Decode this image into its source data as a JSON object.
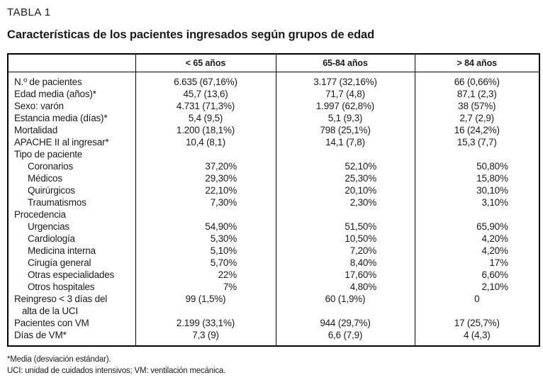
{
  "header": {
    "label": "TABLA 1",
    "title": "Características de los pacientes ingresados según grupos de edad"
  },
  "table": {
    "columns": [
      "",
      "< 65 años",
      "65-84 años",
      "> 84 años"
    ],
    "rows": [
      {
        "label": "N.º de pacientes",
        "indent": 0,
        "pct": false,
        "values": [
          "6.635 (67,16%)",
          "3.177 (32,16%)",
          "66 (0,66%)"
        ]
      },
      {
        "label": "Edad media (años)*",
        "indent": 0,
        "pct": false,
        "values": [
          "45,7 (13,6)",
          "71,7 (4,8)",
          "87,1 (2,3)"
        ]
      },
      {
        "label": "Sexo: varón",
        "indent": 0,
        "pct": false,
        "values": [
          "4.731 (71,3%)",
          "1.997 (62,8%)",
          "38 (57%)"
        ]
      },
      {
        "label": "Estancia media (días)*",
        "indent": 0,
        "pct": false,
        "values": [
          "5,4 (9,5)",
          "5,1 (9,3)",
          "2,7 (2,9)"
        ]
      },
      {
        "label": "Mortalidad",
        "indent": 0,
        "pct": false,
        "values": [
          "1.200 (18,1%)",
          "798 (25,1%)",
          "16 (24,2%)"
        ]
      },
      {
        "label": "APACHE II al ingresar*",
        "indent": 0,
        "pct": false,
        "values": [
          "10,4 (8,1)",
          "14,1 (7,8)",
          "15,3 (7,7)"
        ]
      },
      {
        "label": "Tipo de paciente",
        "indent": 0,
        "pct": false,
        "values": [
          "",
          "",
          ""
        ]
      },
      {
        "label": "Coronarios",
        "indent": 1,
        "pct": true,
        "values": [
          "37,20%",
          "52,10%",
          "50,80%"
        ]
      },
      {
        "label": "Médicos",
        "indent": 1,
        "pct": true,
        "values": [
          "29,30%",
          "25,30%",
          "15,80%"
        ]
      },
      {
        "label": "Quirúrgicos",
        "indent": 1,
        "pct": true,
        "values": [
          "22,10%",
          "20,10%",
          "30,10%"
        ]
      },
      {
        "label": "Traumatismos",
        "indent": 1,
        "pct": true,
        "values": [
          "7,30%",
          "2,30%",
          "3,10%"
        ]
      },
      {
        "label": "Procedencia",
        "indent": 0,
        "pct": false,
        "values": [
          "",
          "",
          ""
        ]
      },
      {
        "label": "Urgencias",
        "indent": 1,
        "pct": true,
        "values": [
          "54,90%",
          "51,50%",
          "65,90%"
        ]
      },
      {
        "label": "Cardiología",
        "indent": 1,
        "pct": true,
        "values": [
          "5,30%",
          "10,50%",
          "4,20%"
        ]
      },
      {
        "label": "Medicina interna",
        "indent": 1,
        "pct": true,
        "values": [
          "5,10%",
          "7,20%",
          "4,20%"
        ]
      },
      {
        "label": "Cirugía general",
        "indent": 1,
        "pct": true,
        "values": [
          "5,70%",
          "8,40%",
          "17%"
        ]
      },
      {
        "label": "Otras especialidades",
        "indent": 1,
        "pct": true,
        "values": [
          "22%",
          "17,60%",
          "6,60%"
        ]
      },
      {
        "label": "Otros hospitales",
        "indent": 1,
        "pct": true,
        "values": [
          "7%",
          "4,80%",
          "2,10%"
        ]
      },
      {
        "label": "Reingreso < 3 días del",
        "label2": "alta de la UCI",
        "indent": 0,
        "pct": false,
        "top": true,
        "values": [
          "99 (1,5%)",
          "60 (1,9%)",
          "0"
        ]
      },
      {
        "label": "Pacientes con VM",
        "indent": 0,
        "pct": false,
        "values": [
          "2.199 (33,1%)",
          "944 (29,7%)",
          "17 (25,7%)"
        ]
      },
      {
        "label": "Días de VM*",
        "indent": 0,
        "pct": false,
        "values": [
          "7,3 (9)",
          "6,6 (7,9)",
          "4 (4,3)"
        ]
      }
    ]
  },
  "footnotes": [
    "*Media (desviación estándar).",
    "UCI: unidad de cuidados intensivos; VM: ventilación mecánica."
  ]
}
